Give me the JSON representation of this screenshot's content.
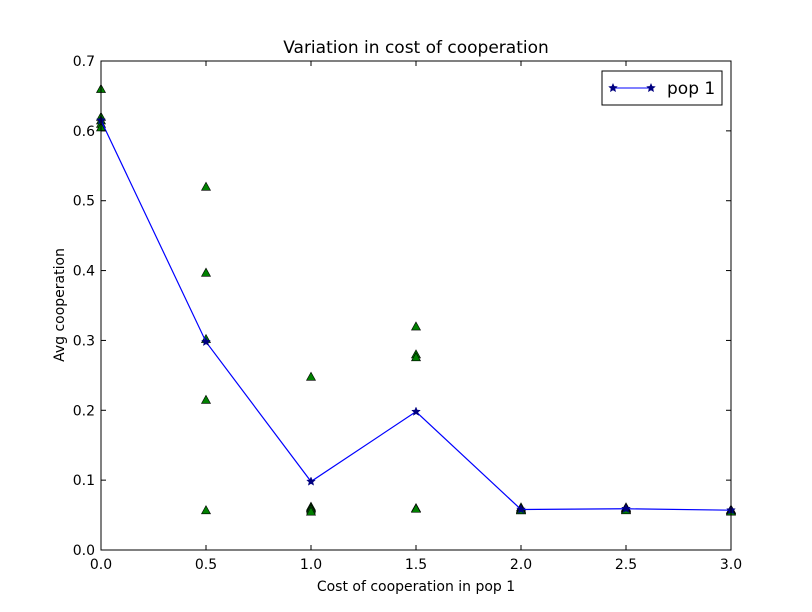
{
  "chart_data": {
    "type": "scatter",
    "title": "Variation in cost of cooperation",
    "xlabel": "Cost of cooperation in pop 1",
    "ylabel": "Avg cooperation",
    "xlim": [
      0.0,
      3.0
    ],
    "ylim": [
      0.0,
      0.7
    ],
    "xticks": [
      "0.0",
      "0.5",
      "1.0",
      "1.5",
      "2.0",
      "2.5",
      "3.0"
    ],
    "yticks": [
      "0.0",
      "0.1",
      "0.2",
      "0.3",
      "0.4",
      "0.5",
      "0.6",
      "0.7"
    ],
    "grid": false,
    "legend_position": "top-right",
    "series": [
      {
        "name": "pop 1",
        "kind": "line",
        "marker": "star",
        "color": "#0000ff",
        "marker_color": "#000080",
        "x": [
          0.0,
          0.5,
          1.0,
          1.5,
          2.0,
          2.5,
          3.0
        ],
        "y": [
          0.615,
          0.298,
          0.098,
          0.198,
          0.058,
          0.059,
          0.057
        ]
      },
      {
        "kind": "scatter",
        "marker": "triangle",
        "color": "#008000",
        "x": [
          0.0,
          0.0,
          0.0,
          0.0,
          0.0,
          0.5,
          0.5,
          0.5,
          0.5,
          0.5,
          1.0,
          1.0,
          1.0,
          1.0,
          1.0,
          1.5,
          1.5,
          1.5,
          1.5,
          1.5,
          2.0,
          2.0,
          2.0,
          2.0,
          2.0,
          2.5,
          2.5,
          2.5,
          2.5,
          2.5,
          3.0,
          3.0,
          3.0,
          3.0,
          3.0
        ],
        "y": [
          0.66,
          0.62,
          0.615,
          0.61,
          0.605,
          0.52,
          0.397,
          0.302,
          0.215,
          0.057,
          0.248,
          0.062,
          0.06,
          0.058,
          0.055,
          0.32,
          0.28,
          0.276,
          0.06,
          0.059,
          0.061,
          0.059,
          0.058,
          0.057,
          0.057,
          0.061,
          0.06,
          0.059,
          0.058,
          0.057,
          0.058,
          0.057,
          0.057,
          0.056,
          0.055
        ]
      }
    ]
  }
}
